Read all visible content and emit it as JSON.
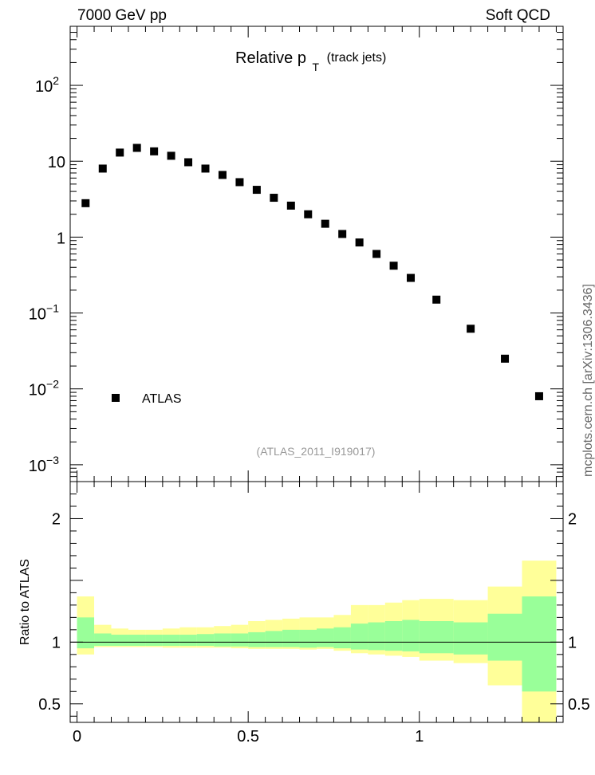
{
  "header": {
    "left": "7000 GeV pp",
    "right": "Soft QCD"
  },
  "side_label": "mcplots.cern.ch [arXiv:1306.3436]",
  "analysis_id": "(ATLAS_2011_I919017)",
  "chart_data": [
    {
      "type": "scatter",
      "title_main": "Relative p",
      "title_sub": "T",
      "title_rest": "(track jets)",
      "xlim": [
        -0.02,
        1.42
      ],
      "ylim": [
        0.0006,
        600
      ],
      "yscale": "log",
      "ytick_values": [
        0.001,
        0.01,
        0.1,
        1,
        10,
        100
      ],
      "ytick_labels": [
        {
          "base": "10",
          "exp": "−3"
        },
        {
          "base": "10",
          "exp": "−2"
        },
        {
          "base": "10",
          "exp": "−1"
        },
        {
          "base": "1",
          "exp": ""
        },
        {
          "base": "10",
          "exp": ""
        },
        {
          "base": "10",
          "exp": "2"
        }
      ],
      "legend": {
        "label": "ATLAS",
        "placement": "bottom-left"
      },
      "series": [
        {
          "name": "ATLAS",
          "color": "#000000",
          "x": [
            0.025,
            0.075,
            0.125,
            0.175,
            0.225,
            0.275,
            0.325,
            0.375,
            0.425,
            0.475,
            0.525,
            0.575,
            0.625,
            0.675,
            0.725,
            0.775,
            0.825,
            0.875,
            0.925,
            0.975,
            1.05,
            1.15,
            1.25,
            1.35
          ],
          "y": [
            2.8,
            8.0,
            13.0,
            15.0,
            13.5,
            11.8,
            9.7,
            8.0,
            6.6,
            5.3,
            4.2,
            3.3,
            2.6,
            2.0,
            1.5,
            1.1,
            0.85,
            0.6,
            0.42,
            0.29,
            0.15,
            0.062,
            0.025,
            0.008
          ]
        }
      ]
    },
    {
      "type": "area",
      "ylabel": "Ratio to ATLAS",
      "xlim": [
        -0.02,
        1.42
      ],
      "ylim": [
        0.35,
        2.3
      ],
      "xtick_values": [
        0,
        0.5,
        1
      ],
      "xtick_labels": [
        "0",
        "0.5",
        "1"
      ],
      "ytick_values": [
        0.5,
        1,
        2
      ],
      "ytick_labels": [
        "0.5",
        "1",
        "2"
      ],
      "reference_line": 1,
      "bins": [
        [
          0.0,
          0.05
        ],
        [
          0.05,
          0.1
        ],
        [
          0.1,
          0.15
        ],
        [
          0.15,
          0.2
        ],
        [
          0.2,
          0.25
        ],
        [
          0.25,
          0.3
        ],
        [
          0.3,
          0.35
        ],
        [
          0.35,
          0.4
        ],
        [
          0.4,
          0.45
        ],
        [
          0.45,
          0.5
        ],
        [
          0.5,
          0.55
        ],
        [
          0.55,
          0.6
        ],
        [
          0.6,
          0.65
        ],
        [
          0.65,
          0.7
        ],
        [
          0.7,
          0.75
        ],
        [
          0.75,
          0.8
        ],
        [
          0.8,
          0.85
        ],
        [
          0.85,
          0.9
        ],
        [
          0.9,
          0.95
        ],
        [
          0.95,
          1.0
        ],
        [
          1.0,
          1.1
        ],
        [
          1.1,
          1.2
        ],
        [
          1.2,
          1.3
        ],
        [
          1.3,
          1.4
        ]
      ],
      "yellow_band": {
        "color": "#ffff99",
        "low": [
          0.9,
          0.96,
          0.96,
          0.96,
          0.96,
          0.955,
          0.955,
          0.955,
          0.955,
          0.95,
          0.945,
          0.945,
          0.945,
          0.94,
          0.945,
          0.93,
          0.91,
          0.9,
          0.89,
          0.88,
          0.85,
          0.83,
          0.65,
          0.35
        ],
        "high": [
          1.37,
          1.14,
          1.11,
          1.1,
          1.1,
          1.11,
          1.12,
          1.12,
          1.13,
          1.14,
          1.17,
          1.18,
          1.19,
          1.2,
          1.2,
          1.22,
          1.3,
          1.3,
          1.32,
          1.34,
          1.35,
          1.34,
          1.45,
          1.66
        ]
      },
      "green_band": {
        "color": "#99ff99",
        "low": [
          0.95,
          0.97,
          0.97,
          0.97,
          0.97,
          0.97,
          0.97,
          0.97,
          0.965,
          0.965,
          0.96,
          0.96,
          0.96,
          0.955,
          0.96,
          0.95,
          0.94,
          0.935,
          0.93,
          0.925,
          0.91,
          0.9,
          0.85,
          0.6
        ],
        "high": [
          1.2,
          1.07,
          1.06,
          1.06,
          1.06,
          1.06,
          1.06,
          1.065,
          1.07,
          1.07,
          1.08,
          1.09,
          1.1,
          1.1,
          1.11,
          1.12,
          1.15,
          1.16,
          1.17,
          1.18,
          1.17,
          1.16,
          1.23,
          1.37
        ]
      }
    }
  ]
}
